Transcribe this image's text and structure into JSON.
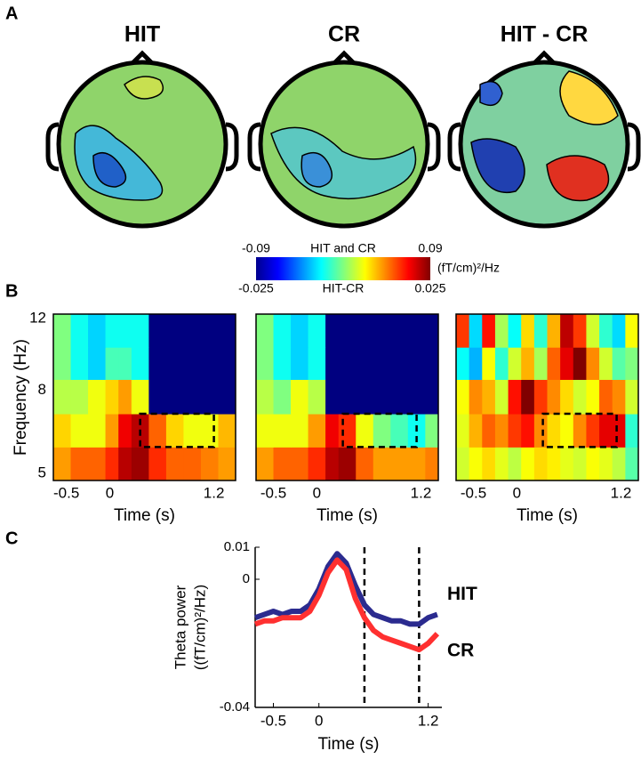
{
  "panel_labels": [
    "A",
    "B",
    "C"
  ],
  "topomaps": {
    "titles": [
      "HIT",
      "CR",
      "HIT - CR"
    ]
  },
  "colorbar": {
    "label_top": "HIT and CR",
    "label_bottom": "HIT-CR",
    "unit": "(fT/cm)²/Hz",
    "top_ticks": [
      -0.09,
      0.09
    ],
    "bottom_ticks": [
      -0.025,
      0.025
    ],
    "colormap": "jet"
  },
  "chart_data": [
    {
      "type": "heatmap",
      "y_label": "Frequency (Hz)",
      "x_label": "Time (s)",
      "colormap": "jet",
      "xlim": [
        -0.65,
        1.45
      ],
      "xticks": [
        -0.5,
        0,
        1.2
      ],
      "ylim": [
        4.8,
        12.3
      ],
      "yticks": [
        5,
        8,
        12
      ],
      "y_log": true,
      "zlim": [
        -0.09,
        0.09
      ],
      "x_edges": [
        -0.65,
        -0.45,
        -0.25,
        -0.05,
        0.1,
        0.25,
        0.45,
        0.65,
        0.85,
        1.05,
        1.25,
        1.45
      ],
      "y_edges": [
        4.8,
        5.8,
        7.0,
        8.5,
        10.2,
        12.3
      ],
      "z": [
        [
          0.04,
          0.05,
          0.05,
          0.06,
          0.08,
          0.085,
          0.06,
          0.05,
          0.05,
          0.045,
          0.04
        ],
        [
          0.03,
          0.02,
          0.02,
          0.04,
          0.07,
          0.08,
          0.05,
          0.03,
          0.02,
          0.02,
          0.035
        ],
        [
          0.01,
          0.01,
          0.02,
          0.03,
          0.04,
          0.02,
          -0.09,
          -0.09,
          -0.09,
          -0.09,
          -0.09
        ],
        [
          0.0,
          -0.02,
          -0.03,
          -0.01,
          -0.01,
          -0.02,
          -0.09,
          -0.09,
          -0.09,
          -0.09,
          -0.09
        ],
        [
          0.0,
          -0.02,
          -0.03,
          -0.02,
          -0.02,
          -0.02,
          -0.09,
          -0.09,
          -0.09,
          -0.09,
          -0.09
        ]
      ],
      "highlight": {
        "x": [
          0.35,
          1.2
        ],
        "y": [
          5.8,
          7.0
        ]
      }
    },
    {
      "type": "heatmap",
      "x_label": "Time (s)",
      "colormap": "jet",
      "xlim": [
        -0.7,
        1.4
      ],
      "xticks": [
        -0.5,
        0,
        1.2
      ],
      "ylim": [
        4.8,
        12.3
      ],
      "y_log": true,
      "zlim": [
        -0.09,
        0.09
      ],
      "x_edges": [
        -0.7,
        -0.5,
        -0.3,
        -0.1,
        0.1,
        0.25,
        0.45,
        0.65,
        0.85,
        1.05,
        1.25,
        1.4
      ],
      "y_edges": [
        4.8,
        5.8,
        7.0,
        8.5,
        10.2,
        12.3
      ],
      "z": [
        [
          0.04,
          0.05,
          0.05,
          0.06,
          0.08,
          0.085,
          0.05,
          0.04,
          0.04,
          0.04,
          0.045
        ],
        [
          0.02,
          0.02,
          0.02,
          0.04,
          0.07,
          0.06,
          0.02,
          0.0,
          -0.01,
          -0.02,
          0.0
        ],
        [
          0.01,
          0.0,
          0.02,
          0.01,
          -0.09,
          -0.09,
          -0.09,
          -0.09,
          -0.09,
          -0.09,
          -0.09
        ],
        [
          0.0,
          -0.02,
          -0.03,
          -0.02,
          -0.09,
          -0.09,
          -0.09,
          -0.09,
          -0.09,
          -0.09,
          -0.09
        ],
        [
          0.0,
          -0.02,
          -0.03,
          -0.02,
          -0.09,
          -0.09,
          -0.09,
          -0.09,
          -0.09,
          -0.09,
          -0.09
        ]
      ],
      "highlight": {
        "x": [
          0.3,
          1.15
        ],
        "y": [
          5.8,
          7.0
        ]
      }
    },
    {
      "type": "heatmap",
      "x_label": "Time (s)",
      "colormap": "jet",
      "xlim": [
        -0.7,
        1.4
      ],
      "xticks": [
        -0.5,
        0,
        1.2
      ],
      "ylim": [
        4.8,
        12.3
      ],
      "y_log": true,
      "zlim": [
        -0.025,
        0.025
      ],
      "x_edges": [
        -0.7,
        -0.55,
        -0.4,
        -0.25,
        -0.1,
        0.05,
        0.2,
        0.35,
        0.5,
        0.65,
        0.8,
        0.95,
        1.1,
        1.25,
        1.4
      ],
      "y_edges": [
        4.8,
        5.8,
        7.0,
        8.5,
        10.2,
        12.3
      ],
      "z": [
        [
          0.004,
          0.006,
          0.008,
          0.005,
          0.003,
          0.006,
          0.008,
          0.007,
          0.005,
          0.004,
          0.006,
          0.005,
          0.003,
          -0.002
        ],
        [
          0.005,
          0.01,
          0.014,
          0.012,
          0.016,
          0.018,
          0.012,
          0.008,
          0.006,
          0.012,
          0.016,
          0.02,
          0.02,
          -0.004
        ],
        [
          0.006,
          0.012,
          0.01,
          0.004,
          0.018,
          0.025,
          0.016,
          0.012,
          0.008,
          0.004,
          0.006,
          0.014,
          0.012,
          0.004
        ],
        [
          -0.006,
          -0.01,
          0.006,
          -0.004,
          0.004,
          0.01,
          0.002,
          0.014,
          0.02,
          0.025,
          0.012,
          0.004,
          -0.002,
          0.0
        ],
        [
          0.016,
          -0.008,
          0.018,
          0.002,
          -0.006,
          0.008,
          -0.004,
          0.01,
          0.022,
          0.016,
          0.004,
          -0.004,
          -0.008,
          0.006
        ]
      ],
      "highlight": {
        "x": [
          0.3,
          1.15
        ],
        "y": [
          5.8,
          7.0
        ]
      }
    },
    {
      "type": "line",
      "y_label": [
        "Theta power",
        "((fT/cm)²/Hz)"
      ],
      "x_label": "Time (s)",
      "x": [
        -0.7,
        -0.6,
        -0.5,
        -0.4,
        -0.3,
        -0.2,
        -0.1,
        0,
        0.1,
        0.2,
        0.3,
        0.4,
        0.5,
        0.6,
        0.7,
        0.8,
        0.9,
        1.0,
        1.1,
        1.2,
        1.3
      ],
      "series": [
        {
          "name": "HIT",
          "color": "#2b2b8f",
          "values": [
            -0.012,
            -0.011,
            -0.01,
            -0.011,
            -0.01,
            -0.01,
            -0.008,
            -0.003,
            0.004,
            0.008,
            0.005,
            -0.002,
            -0.008,
            -0.011,
            -0.012,
            -0.013,
            -0.013,
            -0.014,
            -0.014,
            -0.012,
            -0.011
          ]
        },
        {
          "name": "CR",
          "color": "#ff3030",
          "values": [
            -0.014,
            -0.013,
            -0.013,
            -0.012,
            -0.012,
            -0.012,
            -0.01,
            -0.005,
            0.002,
            0.006,
            0.003,
            -0.006,
            -0.012,
            -0.016,
            -0.018,
            -0.019,
            -0.02,
            -0.021,
            -0.022,
            -0.02,
            -0.017
          ]
        }
      ],
      "xlim": [
        -0.7,
        1.35
      ],
      "xticks": [
        -0.5,
        0,
        1.2
      ],
      "ylim": [
        -0.04,
        0.01
      ],
      "yticks": [
        -0.04,
        0,
        0.01
      ],
      "vlines": [
        0.5,
        1.1
      ]
    }
  ]
}
